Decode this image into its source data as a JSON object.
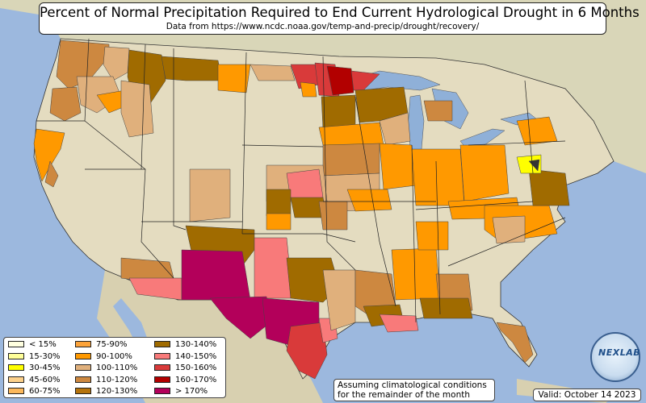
{
  "title": "Percent of Normal Precipitation Required to End Current Hydrological Drought in 6 Months",
  "subtitle": "Data from https://www.ncdc.noaa.gov/temp-and-precip/drought/recovery/",
  "legend": [
    {
      "label": "< 15%",
      "color": "#ffffe0"
    },
    {
      "label": "15-30%",
      "color": "#ffff99"
    },
    {
      "label": "30-45%",
      "color": "#ffff00"
    },
    {
      "label": "45-60%",
      "color": "#fcd08a"
    },
    {
      "label": "60-75%",
      "color": "#fcb85c"
    },
    {
      "label": "75-90%",
      "color": "#fca33a"
    },
    {
      "label": "90-100%",
      "color": "#ff9900"
    },
    {
      "label": "100-110%",
      "color": "#e0b07c"
    },
    {
      "label": "110-120%",
      "color": "#cd8840"
    },
    {
      "label": "120-130%",
      "color": "#b5730c"
    },
    {
      "label": "130-140%",
      "color": "#a06b00"
    },
    {
      "label": "140-150%",
      "color": "#f87a7a"
    },
    {
      "label": "150-160%",
      "color": "#d93a3a"
    },
    {
      "label": "160-170%",
      "color": "#b20000"
    },
    {
      "label": "> 170%",
      "color": "#b3005a"
    }
  ],
  "note": {
    "line1": "Assuming climatological conditions",
    "line2": "for the remainder of the month"
  },
  "valid": "Valid: October 14 2023",
  "logo": {
    "text": "NEXLAB",
    "icon": "globe-logo"
  },
  "colors": {
    "ocean": "#9cb8de",
    "land": "#e4dcc0",
    "land_outside": "#d8d2b4",
    "lakes": "#8fb0d8"
  }
}
